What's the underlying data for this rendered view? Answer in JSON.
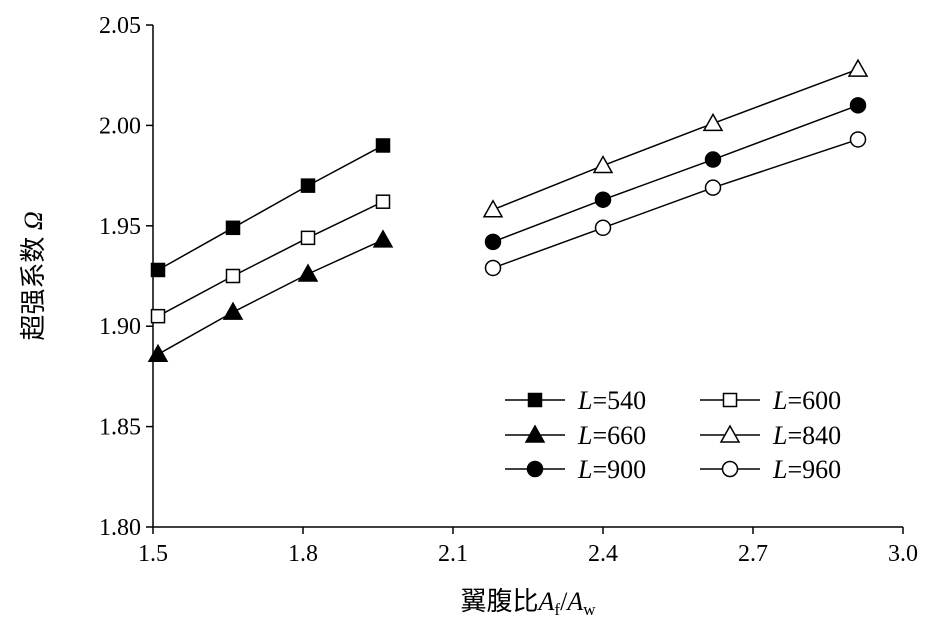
{
  "chart_data": {
    "type": "line",
    "title": "",
    "xlabel": "翼腹比",
    "xlabel_math": {
      "A": "A",
      "f": "f",
      "slash": "/",
      "w": "w"
    },
    "ylabel": "超强系数",
    "ylabel_symbol": "Ω",
    "xlim": [
      1.5,
      3.0
    ],
    "ylim": [
      1.8,
      2.05
    ],
    "xticks": [
      "1.5",
      "1.8",
      "2.1",
      "2.4",
      "2.7",
      "3.0"
    ],
    "yticks": [
      "1.80",
      "1.85",
      "1.90",
      "1.95",
      "2.00",
      "2.05"
    ],
    "grid": false,
    "legend_placement": "bottom-right",
    "series": [
      {
        "name": "L=540",
        "var": "L",
        "value": "=540",
        "marker": "square-filled",
        "x": [
          1.51,
          1.66,
          1.81,
          1.96
        ],
        "y": [
          1.928,
          1.949,
          1.97,
          1.99
        ]
      },
      {
        "name": "L=600",
        "var": "L",
        "value": "=600",
        "marker": "square-open",
        "x": [
          1.51,
          1.66,
          1.81,
          1.96
        ],
        "y": [
          1.905,
          1.925,
          1.944,
          1.962
        ]
      },
      {
        "name": "L=660",
        "var": "L",
        "value": "=660",
        "marker": "triangle-filled",
        "x": [
          1.51,
          1.66,
          1.81,
          1.96
        ],
        "y": [
          1.886,
          1.907,
          1.926,
          1.943
        ]
      },
      {
        "name": "L=840",
        "var": "L",
        "value": "=840",
        "marker": "triangle-open",
        "x": [
          2.18,
          2.4,
          2.62,
          2.91
        ],
        "y": [
          1.958,
          1.98,
          2.001,
          2.028
        ]
      },
      {
        "name": "L=900",
        "var": "L",
        "value": "=900",
        "marker": "circle-filled",
        "x": [
          2.18,
          2.4,
          2.62,
          2.91
        ],
        "y": [
          1.942,
          1.963,
          1.983,
          2.01
        ]
      },
      {
        "name": "L=960",
        "var": "L",
        "value": "=960",
        "marker": "circle-open",
        "x": [
          2.18,
          2.4,
          2.62,
          2.91
        ],
        "y": [
          1.929,
          1.949,
          1.969,
          1.993
        ]
      }
    ]
  }
}
